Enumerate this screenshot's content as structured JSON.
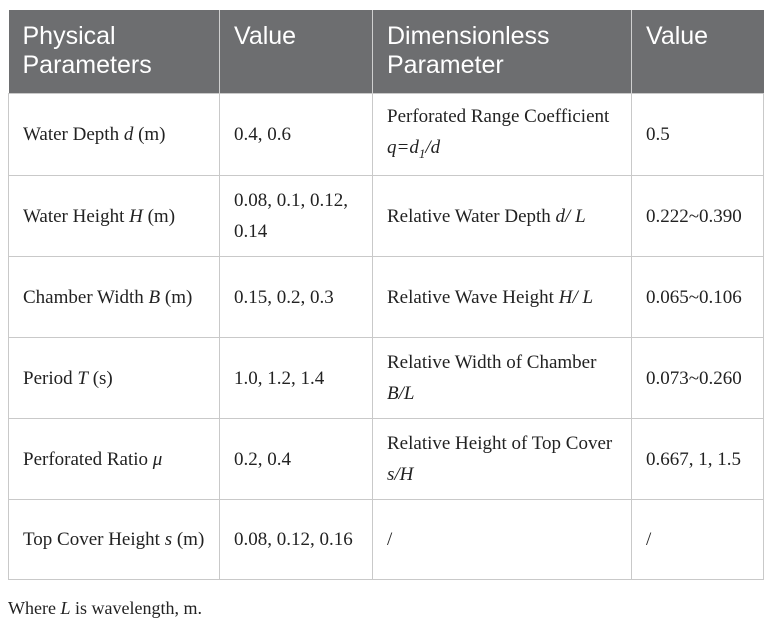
{
  "table": {
    "headers": [
      "Physical Parameters",
      "Value",
      "Dimensionless Parameter",
      "Value"
    ],
    "rows": [
      {
        "phys_pre": "Water Depth ",
        "phys_var": "d",
        "phys_post": " (m)",
        "value": "0.4, 0.6",
        "dim_pre": "Perforated Range Coefficient ",
        "dim_var": "q=d",
        "dim_sub": "1",
        "dim_post": "/d",
        "dim_value": "0.5"
      },
      {
        "phys_pre": "Water Height ",
        "phys_var": "H",
        "phys_post": " (m)",
        "value": "0.08, 0.1, 0.12, 0.14",
        "dim_pre": "Relative Water Depth ",
        "dim_var": "d/ L",
        "dim_sub": "",
        "dim_post": "",
        "dim_value": "0.222~0.390"
      },
      {
        "phys_pre": "Chamber Width ",
        "phys_var": "B",
        "phys_post": " (m)",
        "value": "0.15, 0.2, 0.3",
        "dim_pre": "Relative Wave Height ",
        "dim_var": "H/ L",
        "dim_sub": "",
        "dim_post": "",
        "dim_value": "0.065~0.106"
      },
      {
        "phys_pre": "Period ",
        "phys_var": "T",
        "phys_post": " (s)",
        "value": "1.0, 1.2, 1.4",
        "dim_pre": "Relative Width of Chamber ",
        "dim_var": "B/L",
        "dim_sub": "",
        "dim_post": "",
        "dim_value": "0.073~0.260"
      },
      {
        "phys_pre": "Perforated Ratio ",
        "phys_var": "μ",
        "phys_post": "",
        "value": "0.2, 0.4",
        "dim_pre": "Relative Height of Top Cover ",
        "dim_var": "s/H",
        "dim_sub": "",
        "dim_post": "",
        "dim_value": "0.667, 1, 1.5"
      },
      {
        "phys_pre": "Top Cover Height ",
        "phys_var": "s",
        "phys_post": " (m)",
        "value": "0.08, 0.12, 0.16",
        "dim_pre": "/",
        "dim_var": "",
        "dim_sub": "",
        "dim_post": "",
        "dim_value": "/"
      }
    ]
  },
  "note": {
    "pre": "Where ",
    "var": "L",
    "post": " is wavelength, m."
  },
  "colors": {
    "header_bg": "#6d6e70",
    "header_text": "#ffffff",
    "border": "#c9c9c9"
  }
}
